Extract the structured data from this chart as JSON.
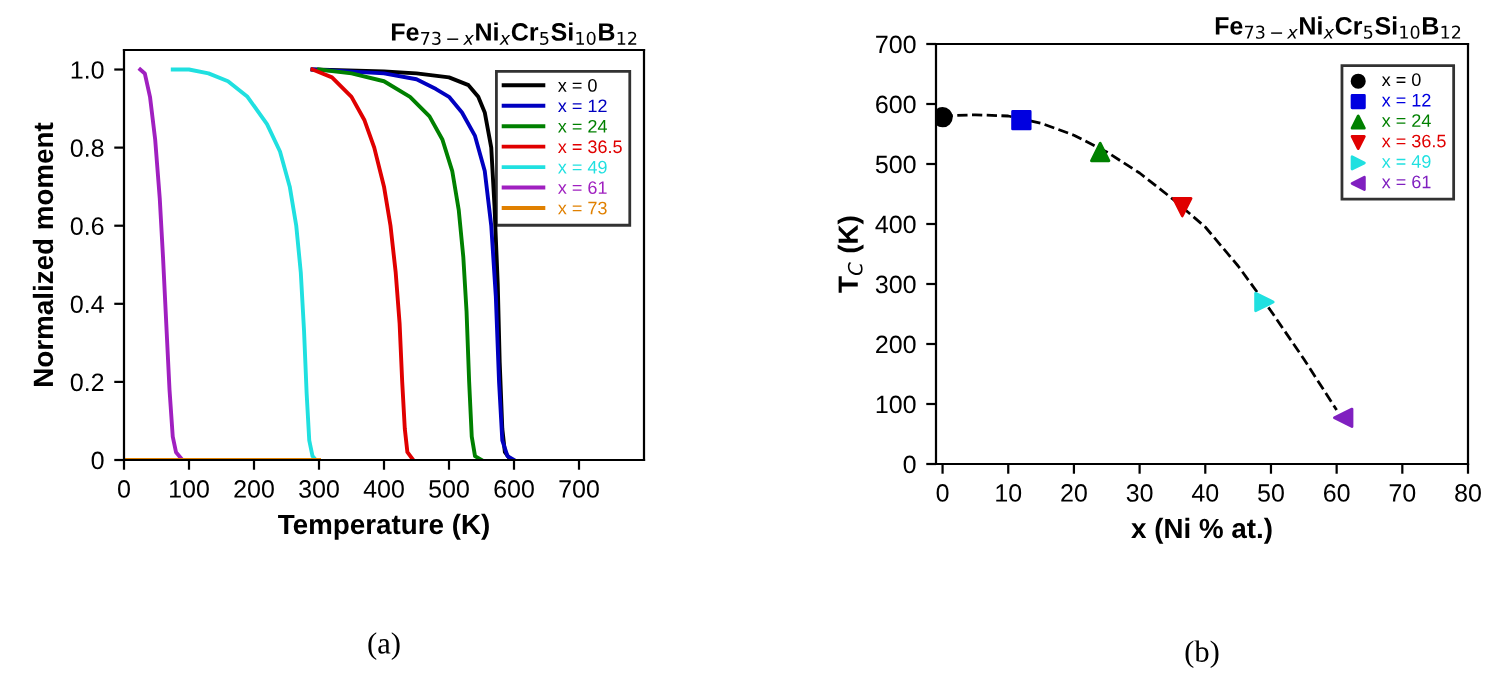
{
  "chart_data": [
    {
      "type": "line",
      "title": "Fe$_{73−x}$Ni$_{x}$Cr$_{5}$Si$_{10}$B$_{12}$",
      "xlabel": "Temperature (K)",
      "ylabel": "Normalized moment",
      "xlim": [
        0,
        800
      ],
      "xticks": [
        0,
        100,
        200,
        300,
        400,
        500,
        600,
        700
      ],
      "ylim": [
        0,
        1.05
      ],
      "yticks": [
        {
          "value": 0,
          "label": "0"
        },
        {
          "value": 0.2,
          "label": "0.2"
        },
        {
          "value": 0.4,
          "label": "0.4"
        },
        {
          "value": 0.6,
          "label": "0.6"
        },
        {
          "value": 0.8,
          "label": "0.8"
        },
        {
          "value": 1.0,
          "label": "1.0"
        }
      ],
      "legend": "top right",
      "grid": false,
      "annotations": [
        "(a)"
      ],
      "series": [
        {
          "name": "x = 0",
          "color": "#000000",
          "x": [
            290,
            400,
            450,
            500,
            530,
            545,
            555,
            565,
            570,
            575,
            578,
            582,
            586,
            595
          ],
          "values": [
            1.0,
            0.995,
            0.99,
            0.98,
            0.96,
            0.93,
            0.89,
            0.8,
            0.65,
            0.45,
            0.25,
            0.08,
            0.02,
            0
          ]
        },
        {
          "name": "x = 12",
          "color": "#0000c0",
          "x": [
            290,
            400,
            450,
            480,
            500,
            520,
            540,
            555,
            565,
            572,
            577,
            582,
            590,
            600
          ],
          "values": [
            1.0,
            0.99,
            0.975,
            0.95,
            0.93,
            0.89,
            0.83,
            0.74,
            0.6,
            0.42,
            0.2,
            0.05,
            0.01,
            0
          ]
        },
        {
          "name": "x = 24",
          "color": "#008000",
          "x": [
            300,
            350,
            400,
            440,
            470,
            490,
            505,
            515,
            522,
            527,
            531,
            535,
            540,
            550
          ],
          "values": [
            1.0,
            0.99,
            0.97,
            0.93,
            0.88,
            0.82,
            0.74,
            0.64,
            0.52,
            0.38,
            0.2,
            0.06,
            0.01,
            0
          ]
        },
        {
          "name": "x = 36.5",
          "color": "#e00000",
          "x": [
            290,
            320,
            350,
            370,
            385,
            400,
            410,
            418,
            424,
            428,
            432,
            436,
            445
          ],
          "values": [
            1.0,
            0.98,
            0.93,
            0.87,
            0.8,
            0.7,
            0.6,
            0.48,
            0.35,
            0.2,
            0.08,
            0.02,
            0
          ]
        },
        {
          "name": "x = 49",
          "color": "#20e0e0",
          "x": [
            75,
            100,
            130,
            160,
            190,
            220,
            240,
            255,
            265,
            272,
            277,
            281,
            285,
            290,
            295
          ],
          "values": [
            1.0,
            1.0,
            0.99,
            0.97,
            0.93,
            0.86,
            0.79,
            0.7,
            0.6,
            0.48,
            0.33,
            0.17,
            0.05,
            0.01,
            0
          ]
        },
        {
          "name": "x = 61",
          "color": "#a020c0",
          "x": [
            25,
            32,
            40,
            48,
            55,
            60,
            65,
            70,
            75,
            80,
            90
          ],
          "values": [
            1.0,
            0.99,
            0.93,
            0.82,
            0.67,
            0.52,
            0.35,
            0.18,
            0.06,
            0.02,
            0
          ]
        },
        {
          "name": "x = 73",
          "color": "#e08000",
          "x": [
            0,
            300
          ],
          "values": [
            0,
            0
          ]
        }
      ]
    },
    {
      "type": "scatter",
      "title": "Fe$_{73−x}$Ni$_{x}$Cr$_{5}$Si$_{10}$B$_{12}$",
      "xlabel": "x (Ni % at.)",
      "ylabel": "T$_{C}$ (K)",
      "xlim": [
        -1,
        80
      ],
      "xticks": [
        0,
        10,
        20,
        30,
        40,
        50,
        60,
        70,
        80
      ],
      "ylim": [
        0,
        700
      ],
      "yticks": [
        0,
        100,
        200,
        300,
        400,
        500,
        600,
        700
      ],
      "legend": "top right",
      "grid": false,
      "annotations": [
        "(b)"
      ],
      "series": [
        {
          "type": "line",
          "color": "#000000",
          "line_style": "dashed",
          "marker": "none",
          "x": [
            0,
            5,
            10,
            15,
            20,
            25,
            30,
            35,
            40,
            45,
            50,
            55,
            60
          ],
          "values": [
            580,
            582,
            580,
            568,
            548,
            520,
            485,
            442,
            395,
            330,
            255,
            175,
            90
          ]
        },
        {
          "name": "x = 0",
          "color": "#000000",
          "marker": "circle",
          "x": [
            0
          ],
          "values": [
            578
          ]
        },
        {
          "name": "x = 12",
          "color": "#0000e0",
          "marker": "square",
          "x": [
            12
          ],
          "values": [
            573
          ]
        },
        {
          "name": "x = 24",
          "color": "#008000",
          "marker": "triangle",
          "x": [
            24
          ],
          "values": [
            520
          ]
        },
        {
          "name": "x = 36.5",
          "color": "#e00000",
          "marker": "triangle_down",
          "x": [
            36.5
          ],
          "values": [
            428
          ]
        },
        {
          "name": "x = 49",
          "color": "#20e0e0",
          "marker": "triangle_right",
          "x": [
            49
          ],
          "values": [
            270
          ]
        },
        {
          "name": "x = 61",
          "color": "#8020c0",
          "marker": "triangle_left",
          "x": [
            61
          ],
          "values": [
            77
          ]
        }
      ]
    }
  ]
}
